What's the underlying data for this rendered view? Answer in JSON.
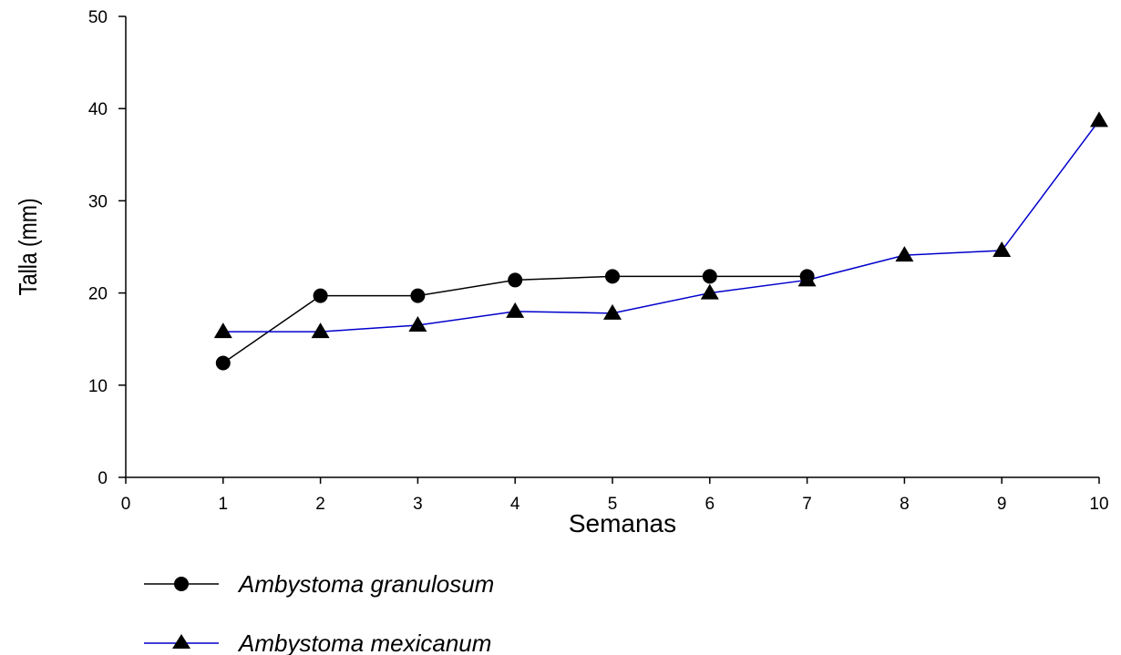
{
  "chart_data": {
    "type": "line",
    "xlabel": "Semanas",
    "ylabel": "Talla (mm)",
    "xlim": [
      0,
      10
    ],
    "ylim": [
      0,
      50
    ],
    "xticks": [
      "0",
      "1",
      "2",
      "3",
      "4",
      "5",
      "6",
      "7",
      "8",
      "9",
      "10"
    ],
    "yticks": [
      "0",
      "10",
      "20",
      "30",
      "40",
      "50"
    ],
    "grid": false,
    "legend_position": "bottom-left",
    "series": [
      {
        "name": "Ambystoma granulosum",
        "marker": "circle",
        "color": "#000000",
        "x": [
          1,
          2,
          3,
          4,
          5,
          6,
          7
        ],
        "y": [
          12.4,
          19.7,
          19.7,
          21.4,
          21.8,
          21.8,
          21.8
        ]
      },
      {
        "name": "Ambystoma mexicanum",
        "marker": "triangle",
        "color": "#0000cc",
        "x": [
          1,
          2,
          3,
          4,
          5,
          6,
          7,
          8,
          9,
          10
        ],
        "y": [
          15.8,
          15.8,
          16.5,
          18.0,
          17.8,
          20.0,
          21.4,
          24.1,
          24.6,
          38.7
        ]
      }
    ]
  }
}
